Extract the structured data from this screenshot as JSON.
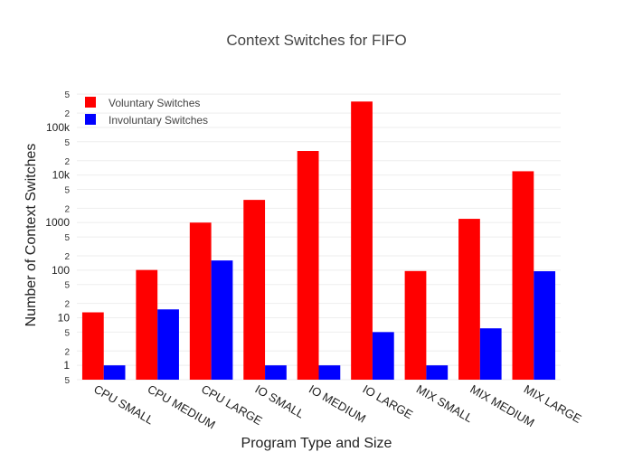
{
  "chart_data": {
    "type": "bar",
    "title": "Context Switches for FIFO",
    "xlabel": "Program Type and Size",
    "ylabel": "Number of Context Switches",
    "yscale": "log",
    "ylim": [
      0.5,
      600000
    ],
    "grid": true,
    "legend_position": "top-left",
    "categories": [
      "CPU SMALL",
      "CPU MEDIUM",
      "CPU LARGE",
      "IO SMALL",
      "IO MEDIUM",
      "IO LARGE",
      "MIX SMALL",
      "MIX MEDIUM",
      "MIX LARGE"
    ],
    "series": [
      {
        "name": "Voluntary Switches",
        "color": "#ff0000",
        "values": [
          13,
          101,
          1000,
          3000,
          32000,
          350000,
          96,
          1200,
          12000
        ]
      },
      {
        "name": "Involuntary Switches",
        "color": "#0000ff",
        "values": [
          1,
          15,
          160,
          1,
          1,
          5,
          1,
          6,
          95
        ]
      }
    ],
    "major_ticks": [
      {
        "value": 1,
        "label": "1"
      },
      {
        "value": 10,
        "label": "10"
      },
      {
        "value": 100,
        "label": "100"
      },
      {
        "value": 1000,
        "label": "1000"
      },
      {
        "value": 10000,
        "label": "10k"
      },
      {
        "value": 100000,
        "label": "100k"
      }
    ],
    "minor_ticks": [
      {
        "value": 0.5,
        "label": "5"
      },
      {
        "value": 2,
        "label": "2"
      },
      {
        "value": 5,
        "label": "5"
      },
      {
        "value": 20,
        "label": "2"
      },
      {
        "value": 50,
        "label": "5"
      },
      {
        "value": 200,
        "label": "2"
      },
      {
        "value": 500,
        "label": "5"
      },
      {
        "value": 2000,
        "label": "2"
      },
      {
        "value": 5000,
        "label": "5"
      },
      {
        "value": 20000,
        "label": "2"
      },
      {
        "value": 50000,
        "label": "5"
      },
      {
        "value": 200000,
        "label": "2"
      },
      {
        "value": 500000,
        "label": "5"
      }
    ]
  }
}
